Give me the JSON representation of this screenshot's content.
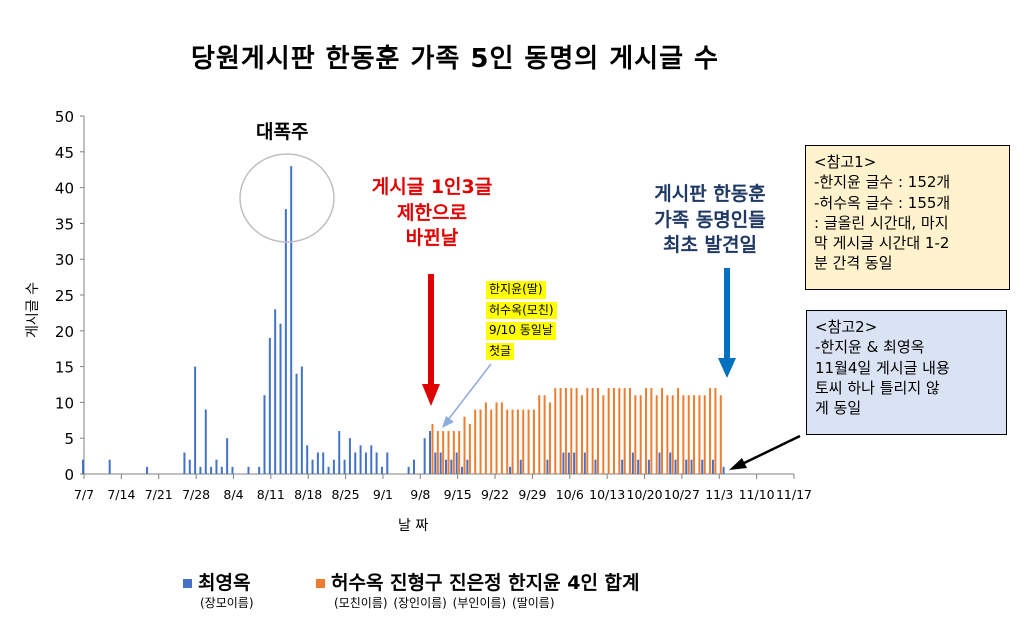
{
  "chart_data": {
    "type": "bar",
    "title": "당원게시판 한동훈 가족 5인 동명의 게시글 수",
    "ylabel": "게시글 수",
    "xlabel": "날 짜",
    "ylim": [
      0,
      50
    ],
    "yticks": [
      0,
      5,
      10,
      15,
      20,
      25,
      30,
      35,
      40,
      45,
      50
    ],
    "xlim": [
      "2024-07-07",
      "2024-11-17"
    ],
    "xtick_labels": [
      "7/7",
      "7/14",
      "7/21",
      "7/28",
      "8/4",
      "8/11",
      "8/18",
      "8/25",
      "9/1",
      "9/8",
      "9/15",
      "9/22",
      "9/29",
      "10/6",
      "10/13",
      "10/20",
      "10/27",
      "11/3",
      "11/10",
      "11/17"
    ],
    "grid": false,
    "legend_position": "bottom",
    "colors": {
      "series1": "#4472C4",
      "series2": "#ED7D31",
      "red_arrow": "#E00000",
      "blue_arrow": "#0070C0"
    },
    "series": [
      {
        "name": "최영옥",
        "sublabel": "(장모이름)",
        "points": [
          [
            "2024-07-07",
            2
          ],
          [
            "2024-07-12",
            2
          ],
          [
            "2024-07-19",
            1
          ],
          [
            "2024-07-26",
            3
          ],
          [
            "2024-07-27",
            2
          ],
          [
            "2024-07-28",
            15
          ],
          [
            "2024-07-29",
            1
          ],
          [
            "2024-07-30",
            9
          ],
          [
            "2024-07-31",
            1
          ],
          [
            "2024-08-01",
            2
          ],
          [
            "2024-08-02",
            1
          ],
          [
            "2024-08-03",
            5
          ],
          [
            "2024-08-04",
            1
          ],
          [
            "2024-08-07",
            1
          ],
          [
            "2024-08-09",
            1
          ],
          [
            "2024-08-10",
            11
          ],
          [
            "2024-08-11",
            19
          ],
          [
            "2024-08-12",
            23
          ],
          [
            "2024-08-13",
            21
          ],
          [
            "2024-08-14",
            37
          ],
          [
            "2024-08-15",
            43
          ],
          [
            "2024-08-16",
            14
          ],
          [
            "2024-08-17",
            15
          ],
          [
            "2024-08-18",
            4
          ],
          [
            "2024-08-19",
            2
          ],
          [
            "2024-08-20",
            3
          ],
          [
            "2024-08-21",
            3
          ],
          [
            "2024-08-22",
            1
          ],
          [
            "2024-08-23",
            2
          ],
          [
            "2024-08-24",
            6
          ],
          [
            "2024-08-25",
            2
          ],
          [
            "2024-08-26",
            5
          ],
          [
            "2024-08-27",
            3
          ],
          [
            "2024-08-28",
            4
          ],
          [
            "2024-08-29",
            3
          ],
          [
            "2024-08-30",
            4
          ],
          [
            "2024-08-31",
            3
          ],
          [
            "2024-09-01",
            1
          ],
          [
            "2024-09-02",
            3
          ],
          [
            "2024-09-06",
            1
          ],
          [
            "2024-09-07",
            2
          ],
          [
            "2024-09-09",
            5
          ],
          [
            "2024-09-10",
            6
          ],
          [
            "2024-09-11",
            3
          ],
          [
            "2024-09-12",
            3
          ],
          [
            "2024-09-13",
            2
          ],
          [
            "2024-09-14",
            2
          ],
          [
            "2024-09-15",
            3
          ],
          [
            "2024-09-16",
            1
          ],
          [
            "2024-09-17",
            2
          ],
          [
            "2024-09-25",
            1
          ],
          [
            "2024-09-27",
            2
          ],
          [
            "2024-10-02",
            2
          ],
          [
            "2024-10-05",
            3
          ],
          [
            "2024-10-06",
            3
          ],
          [
            "2024-10-07",
            3
          ],
          [
            "2024-10-09",
            3
          ],
          [
            "2024-10-11",
            2
          ],
          [
            "2024-10-16",
            2
          ],
          [
            "2024-10-18",
            3
          ],
          [
            "2024-10-19",
            2
          ],
          [
            "2024-10-21",
            2
          ],
          [
            "2024-10-23",
            3
          ],
          [
            "2024-10-25",
            3
          ],
          [
            "2024-10-26",
            2
          ],
          [
            "2024-10-28",
            2
          ],
          [
            "2024-10-29",
            2
          ],
          [
            "2024-10-31",
            2
          ],
          [
            "2024-11-02",
            2
          ],
          [
            "2024-11-04",
            1
          ]
        ]
      },
      {
        "name": "허수옥 진형구 진은정 한지윤 4인 합계",
        "sublabel": "(모친이름) (장인이름) (부인이름) (딸이름)",
        "points": [
          [
            "2024-09-10",
            7
          ],
          [
            "2024-09-11",
            6
          ],
          [
            "2024-09-12",
            6
          ],
          [
            "2024-09-13",
            6
          ],
          [
            "2024-09-14",
            6
          ],
          [
            "2024-09-15",
            6
          ],
          [
            "2024-09-16",
            8
          ],
          [
            "2024-09-17",
            7
          ],
          [
            "2024-09-18",
            9
          ],
          [
            "2024-09-19",
            9
          ],
          [
            "2024-09-20",
            10
          ],
          [
            "2024-09-21",
            9
          ],
          [
            "2024-09-22",
            10
          ],
          [
            "2024-09-23",
            10
          ],
          [
            "2024-09-24",
            9
          ],
          [
            "2024-09-25",
            9
          ],
          [
            "2024-09-26",
            9
          ],
          [
            "2024-09-27",
            9
          ],
          [
            "2024-09-28",
            9
          ],
          [
            "2024-09-29",
            9
          ],
          [
            "2024-09-30",
            11
          ],
          [
            "2024-10-01",
            11
          ],
          [
            "2024-10-02",
            10
          ],
          [
            "2024-10-03",
            12
          ],
          [
            "2024-10-04",
            12
          ],
          [
            "2024-10-05",
            12
          ],
          [
            "2024-10-06",
            12
          ],
          [
            "2024-10-07",
            12
          ],
          [
            "2024-10-08",
            11
          ],
          [
            "2024-10-09",
            12
          ],
          [
            "2024-10-10",
            12
          ],
          [
            "2024-10-11",
            12
          ],
          [
            "2024-10-12",
            11
          ],
          [
            "2024-10-13",
            12
          ],
          [
            "2024-10-14",
            12
          ],
          [
            "2024-10-15",
            12
          ],
          [
            "2024-10-16",
            12
          ],
          [
            "2024-10-17",
            12
          ],
          [
            "2024-10-18",
            11
          ],
          [
            "2024-10-19",
            11
          ],
          [
            "2024-10-20",
            12
          ],
          [
            "2024-10-21",
            12
          ],
          [
            "2024-10-22",
            11
          ],
          [
            "2024-10-23",
            12
          ],
          [
            "2024-10-24",
            11
          ],
          [
            "2024-10-25",
            11
          ],
          [
            "2024-10-26",
            12
          ],
          [
            "2024-10-27",
            11
          ],
          [
            "2024-10-28",
            11
          ],
          [
            "2024-10-29",
            11
          ],
          [
            "2024-10-30",
            11
          ],
          [
            "2024-10-31",
            11
          ],
          [
            "2024-11-01",
            12
          ],
          [
            "2024-11-02",
            12
          ],
          [
            "2024-11-03",
            11
          ]
        ]
      }
    ]
  },
  "annotations": {
    "spike_label": "대폭주",
    "red_note": [
      "게시글 1인3글",
      "제한으로",
      "바뀐날"
    ],
    "blue_note": [
      "게시판 한동훈",
      "가족 동명인들",
      "최초 발견일"
    ],
    "yellow_note": [
      "한지윤(딸)",
      "허수옥(모친)",
      "9/10 동일날",
      "첫글"
    ],
    "ref1": [
      "<참고1>",
      "-한지윤 글수 : 152개",
      "-허수옥 글수 : 155개",
      ": 글올린 시간대, 마지",
      "막 게시글 시간대 1-2",
      "분 간격 동일"
    ],
    "ref2": [
      "<참고2>",
      "-한지윤 & 최영옥",
      "11월4일 게시글 내용",
      "토씨 하나 틀리지 않",
      "게 동일"
    ]
  },
  "legend": {
    "s1_label": "최영옥",
    "s1_sub": "(장모이름)",
    "s2_label": "허수옥 진형구 진은정 한지윤 4인 합계",
    "s2_sub": "(모친이름) (장인이름) (부인이름) (딸이름)"
  }
}
